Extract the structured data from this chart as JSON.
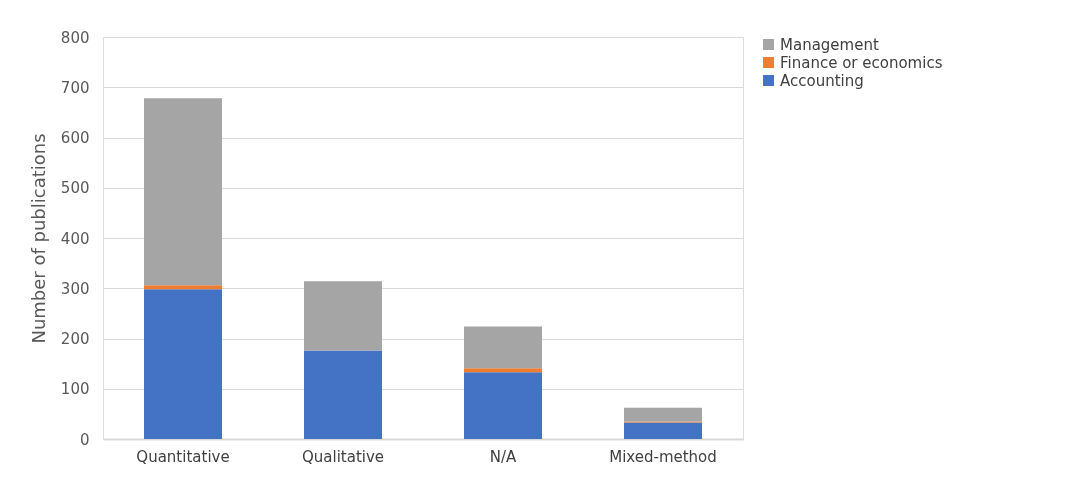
{
  "chart_data": {
    "type": "bar",
    "stacked": true,
    "ylabel": "Number of publications",
    "categories": [
      "Quantitative",
      "Qualitative",
      "N/A",
      "Mixed-method"
    ],
    "series": [
      {
        "name": "Accounting",
        "color": "#4472c4",
        "values": [
          298,
          176,
          133,
          33
        ]
      },
      {
        "name": "Finance or economics",
        "color": "#ed7d31",
        "values": [
          8,
          0,
          8,
          2
        ]
      },
      {
        "name": "Management",
        "color": "#a5a5a5",
        "values": [
          372,
          138,
          83,
          27
        ]
      }
    ],
    "ylim": [
      0,
      800
    ],
    "yticks": [
      0,
      100,
      200,
      300,
      400,
      500,
      600,
      700,
      800
    ],
    "grid": "y",
    "legend": "right"
  }
}
